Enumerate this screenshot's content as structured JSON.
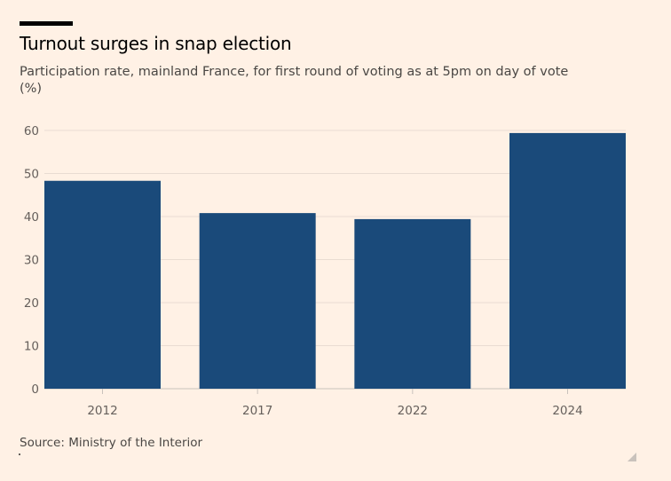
{
  "header": {
    "title": "Turnout surges in snap election",
    "subtitle": "Participation rate, mainland France, for first round of voting as at 5pm on day of vote",
    "unit": "(%)"
  },
  "footer": {
    "source": "Source: Ministry of the Interior"
  },
  "colors": {
    "bar": "#1a4a7a",
    "grid": "#e9dcd2",
    "axis": "#c9c2bc"
  },
  "chart_data": {
    "type": "bar",
    "title": "Turnout surges in snap election",
    "xlabel": "",
    "ylabel": "(%)",
    "categories": [
      "2012",
      "2017",
      "2022",
      "2024"
    ],
    "values": [
      48.3,
      40.8,
      39.4,
      59.4
    ],
    "ylim": [
      0,
      60
    ],
    "yticks": [
      0,
      10,
      20,
      30,
      40,
      50,
      60
    ],
    "grid": true,
    "legend": "none"
  }
}
